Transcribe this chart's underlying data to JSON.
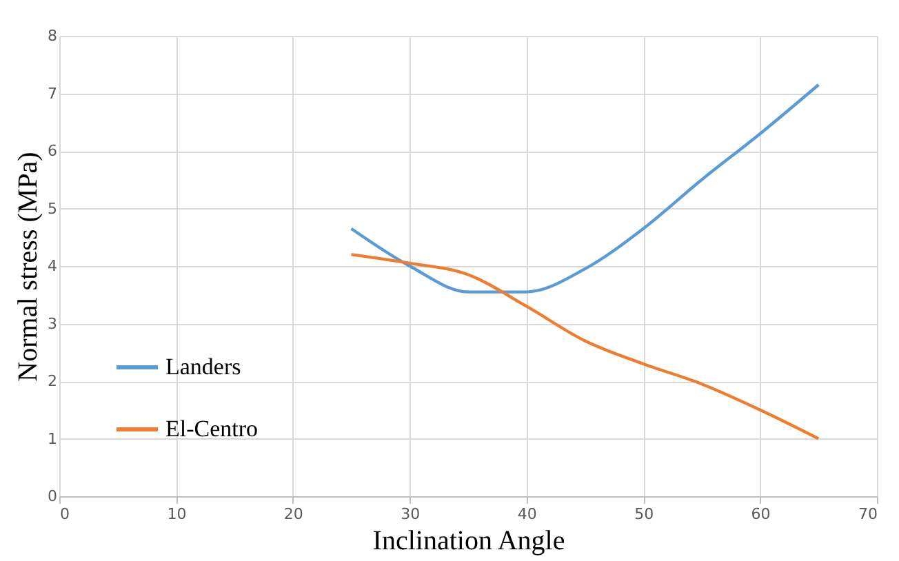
{
  "chart_data": {
    "type": "line",
    "xlabel": "Inclination Angle",
    "ylabel": "Normal stress (MPa)",
    "x": [
      25,
      30,
      35,
      40,
      45,
      50,
      55,
      60,
      65
    ],
    "series": [
      {
        "name": "Landers",
        "color": "#5b9bd5",
        "values": [
          4.65,
          4.0,
          3.55,
          3.55,
          3.95,
          4.65,
          5.5,
          6.3,
          7.15
        ]
      },
      {
        "name": "El-Centro",
        "color": "#ed7d31",
        "values": [
          4.2,
          4.05,
          3.85,
          3.3,
          2.7,
          2.3,
          1.95,
          1.5,
          1.0
        ]
      }
    ],
    "xlim": [
      0,
      70
    ],
    "xticks": [
      0,
      10,
      20,
      30,
      40,
      50,
      60,
      70
    ],
    "ylim": [
      0,
      8
    ],
    "yticks": [
      0,
      1,
      2,
      3,
      4,
      5,
      6,
      7,
      8
    ],
    "grid": true,
    "legend": "bottom left",
    "marker": "none",
    "line_style": "solid"
  }
}
